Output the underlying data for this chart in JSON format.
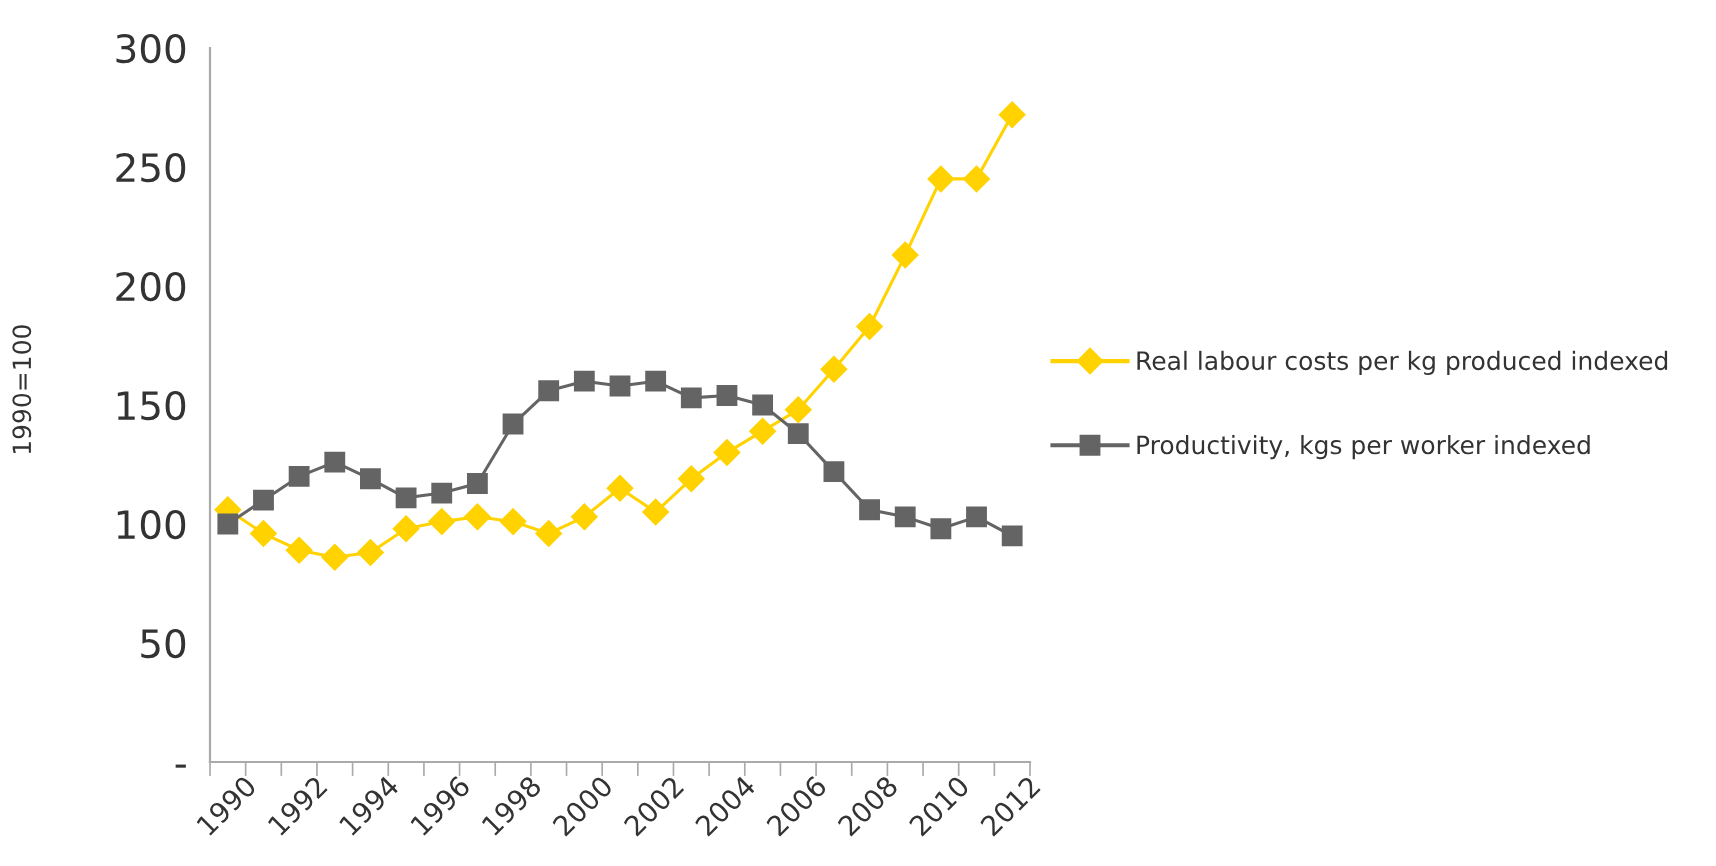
{
  "chart_data": {
    "type": "line",
    "ylabel": "1990=100",
    "categories": [
      "1990",
      null,
      "1992",
      null,
      "1994",
      null,
      "1996",
      null,
      "1998",
      null,
      "2000",
      null,
      "2002",
      null,
      "2004",
      null,
      "2006",
      null,
      "2008",
      null,
      "2010",
      null,
      "2012"
    ],
    "series": [
      {
        "name": "Real labour costs per kg produced indexed",
        "color": "#ffd200",
        "marker": "diamond",
        "values": [
          106,
          96,
          89,
          86,
          88,
          98,
          101,
          103,
          101,
          96,
          103,
          115,
          105,
          119,
          130,
          139,
          148,
          165,
          183,
          213,
          245,
          245,
          272
        ]
      },
      {
        "name": "Productivity, kgs per worker indexed",
        "color": "#646464",
        "marker": "square",
        "values": [
          100,
          110,
          120,
          126,
          119,
          111,
          113,
          117,
          142,
          156,
          160,
          158,
          160,
          153,
          154,
          150,
          138,
          122,
          106,
          103,
          98,
          103,
          95
        ]
      }
    ],
    "ylim": [
      0,
      300
    ],
    "yticks": [
      {
        "value": 0,
        "label": "-"
      },
      50,
      100,
      150,
      200,
      250,
      300
    ],
    "grid": false,
    "legend": "right",
    "line_style": "solid"
  }
}
